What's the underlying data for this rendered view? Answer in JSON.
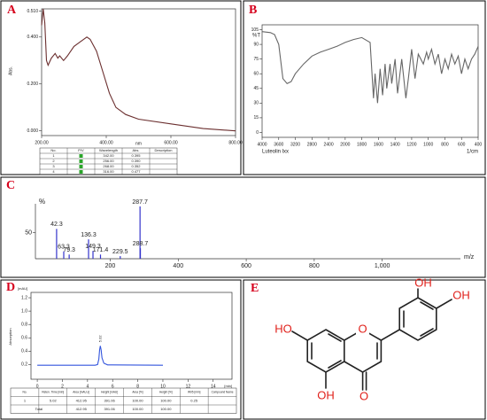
{
  "chart_data": [
    {
      "type": "line",
      "label": "A",
      "ylabel": "Abs.",
      "xlabel": "nm",
      "color": "#6b2f2f",
      "xlim": [
        200,
        800
      ],
      "ylim": [
        -0.02,
        0.52
      ],
      "xticks": [
        {
          "value": 200,
          "label": "200.00"
        },
        {
          "value": 400,
          "label": "400.00"
        },
        {
          "value": 600,
          "label": "600.00"
        },
        {
          "value": 800,
          "label": "800.00"
        }
      ],
      "yticks": [
        {
          "value": 0.51,
          "label": "0.510"
        },
        {
          "value": 0.4,
          "label": "0.400"
        },
        {
          "value": 0.2,
          "label": "0.200"
        },
        {
          "value": 0,
          "label": "0.000"
        }
      ],
      "x": [
        200,
        205,
        210,
        215,
        220,
        230,
        242,
        250,
        256,
        268,
        280,
        300,
        320,
        340,
        350,
        370,
        390,
        410,
        430,
        460,
        500,
        600,
        700,
        800
      ],
      "values": [
        0.45,
        0.52,
        0.46,
        0.3,
        0.28,
        0.31,
        0.33,
        0.31,
        0.32,
        0.3,
        0.32,
        0.36,
        0.38,
        0.4,
        0.39,
        0.34,
        0.25,
        0.16,
        0.1,
        0.07,
        0.05,
        0.03,
        0.01,
        0.0
      ],
      "table": {
        "header": [
          "No.",
          "P/V",
          "Wavelength",
          "Abs.",
          "Description"
        ],
        "rows": [
          [
            "1",
            "342.00",
            "0.395"
          ],
          [
            "2",
            "256.00",
            "0.390"
          ],
          [
            "3",
            "268.00",
            "0.352"
          ],
          [
            "4",
            "316.00",
            "0.477"
          ]
        ]
      }
    },
    {
      "type": "line",
      "label": "B",
      "ylabel": "%T",
      "xlabel": "1/cm",
      "note": "Luteolin lxx",
      "color": "#666666",
      "xlim": [
        4000,
        400
      ],
      "ylim": [
        -5,
        110
      ],
      "xticks": [
        4000,
        3600,
        3200,
        2800,
        2400,
        2000,
        1800,
        1600,
        1400,
        1200,
        1000,
        800,
        600,
        400
      ],
      "yticks": [
        105,
        90,
        75,
        60,
        45,
        30,
        15,
        0
      ],
      "x": [
        4000,
        3800,
        3700,
        3600,
        3500,
        3400,
        3300,
        3200,
        3100,
        3000,
        2800,
        2600,
        2400,
        2200,
        2000,
        1900,
        1800,
        1700,
        1660,
        1640,
        1610,
        1580,
        1550,
        1520,
        1500,
        1460,
        1440,
        1400,
        1370,
        1320,
        1270,
        1240,
        1200,
        1160,
        1120,
        1060,
        1020,
        1000,
        960,
        920,
        880,
        840,
        800,
        760,
        720,
        680,
        640,
        600,
        560,
        520,
        480,
        440,
        400
      ],
      "values": [
        103,
        102,
        100,
        90,
        55,
        50,
        52,
        60,
        65,
        70,
        78,
        82,
        85,
        88,
        92,
        95,
        97,
        92,
        35,
        60,
        30,
        65,
        38,
        70,
        45,
        70,
        50,
        75,
        40,
        75,
        35,
        55,
        85,
        55,
        80,
        70,
        82,
        75,
        85,
        70,
        80,
        60,
        75,
        65,
        80,
        70,
        78,
        60,
        75,
        65,
        75,
        80,
        88
      ]
    },
    {
      "type": "stick",
      "label": "C",
      "ylabel": "%",
      "xlabel": "m/z",
      "color": "#3333cc",
      "xlim": [
        -20,
        1230
      ],
      "ylim": [
        0,
        105
      ],
      "xticks": [
        200,
        400,
        600,
        800,
        {
          "value": 1000,
          "label": "1,000"
        }
      ],
      "yticks": [
        50
      ],
      "x": [
        42.3,
        63.3,
        79.3,
        136.3,
        149.3,
        171.4,
        229.5,
        287.7,
        288.7
      ],
      "values": [
        57,
        14,
        8,
        37,
        15,
        8,
        5,
        100,
        20
      ]
    },
    {
      "type": "line",
      "label": "D",
      "ylabel": "Absorption",
      "yunit": "[mAU]",
      "xlabel": "[min]",
      "color": "#3355dd",
      "xlim": [
        -0.5,
        15.5
      ],
      "ylim": [
        -0.02,
        1.28
      ],
      "xticks": [
        0,
        2,
        4,
        6,
        8,
        10,
        12,
        14
      ],
      "yticks": [
        {
          "value": 0.2,
          "label": "0.2"
        },
        {
          "value": 0.4,
          "label": "0.4"
        },
        {
          "value": 0.6,
          "label": "0.6"
        },
        {
          "value": 0.8,
          "label": "0.8"
        },
        {
          "value": 1,
          "label": "1.0"
        },
        {
          "value": 1.2,
          "label": "1.2"
        }
      ],
      "x": [
        0,
        4.6,
        4.8,
        4.9,
        4.96,
        5.02,
        5.08,
        5.15,
        5.3,
        5.6,
        10
      ],
      "values": [
        0.19,
        0.19,
        0.2,
        0.28,
        0.42,
        0.48,
        0.42,
        0.3,
        0.22,
        0.195,
        0.19
      ],
      "annotation": 5.02,
      "table": {
        "header": [
          "No.",
          "Reten. Time [min]",
          "Area [mAU.s]",
          "Height [mAU]",
          "Area [%]",
          "Height [%]",
          "W05 [min]",
          "Compound Name"
        ],
        "rows": [
          [
            "1",
            "5.02",
            "412.95",
            "391.06",
            "100.00",
            "100.00",
            "0.25"
          ],
          [
            "Total",
            "412.95",
            "391.06",
            "100.00",
            "100.00"
          ]
        ]
      }
    }
  ],
  "structure": {
    "label": "E",
    "atoms": [
      "OH",
      "OH",
      "HO",
      "O",
      "OH",
      "O"
    ]
  }
}
